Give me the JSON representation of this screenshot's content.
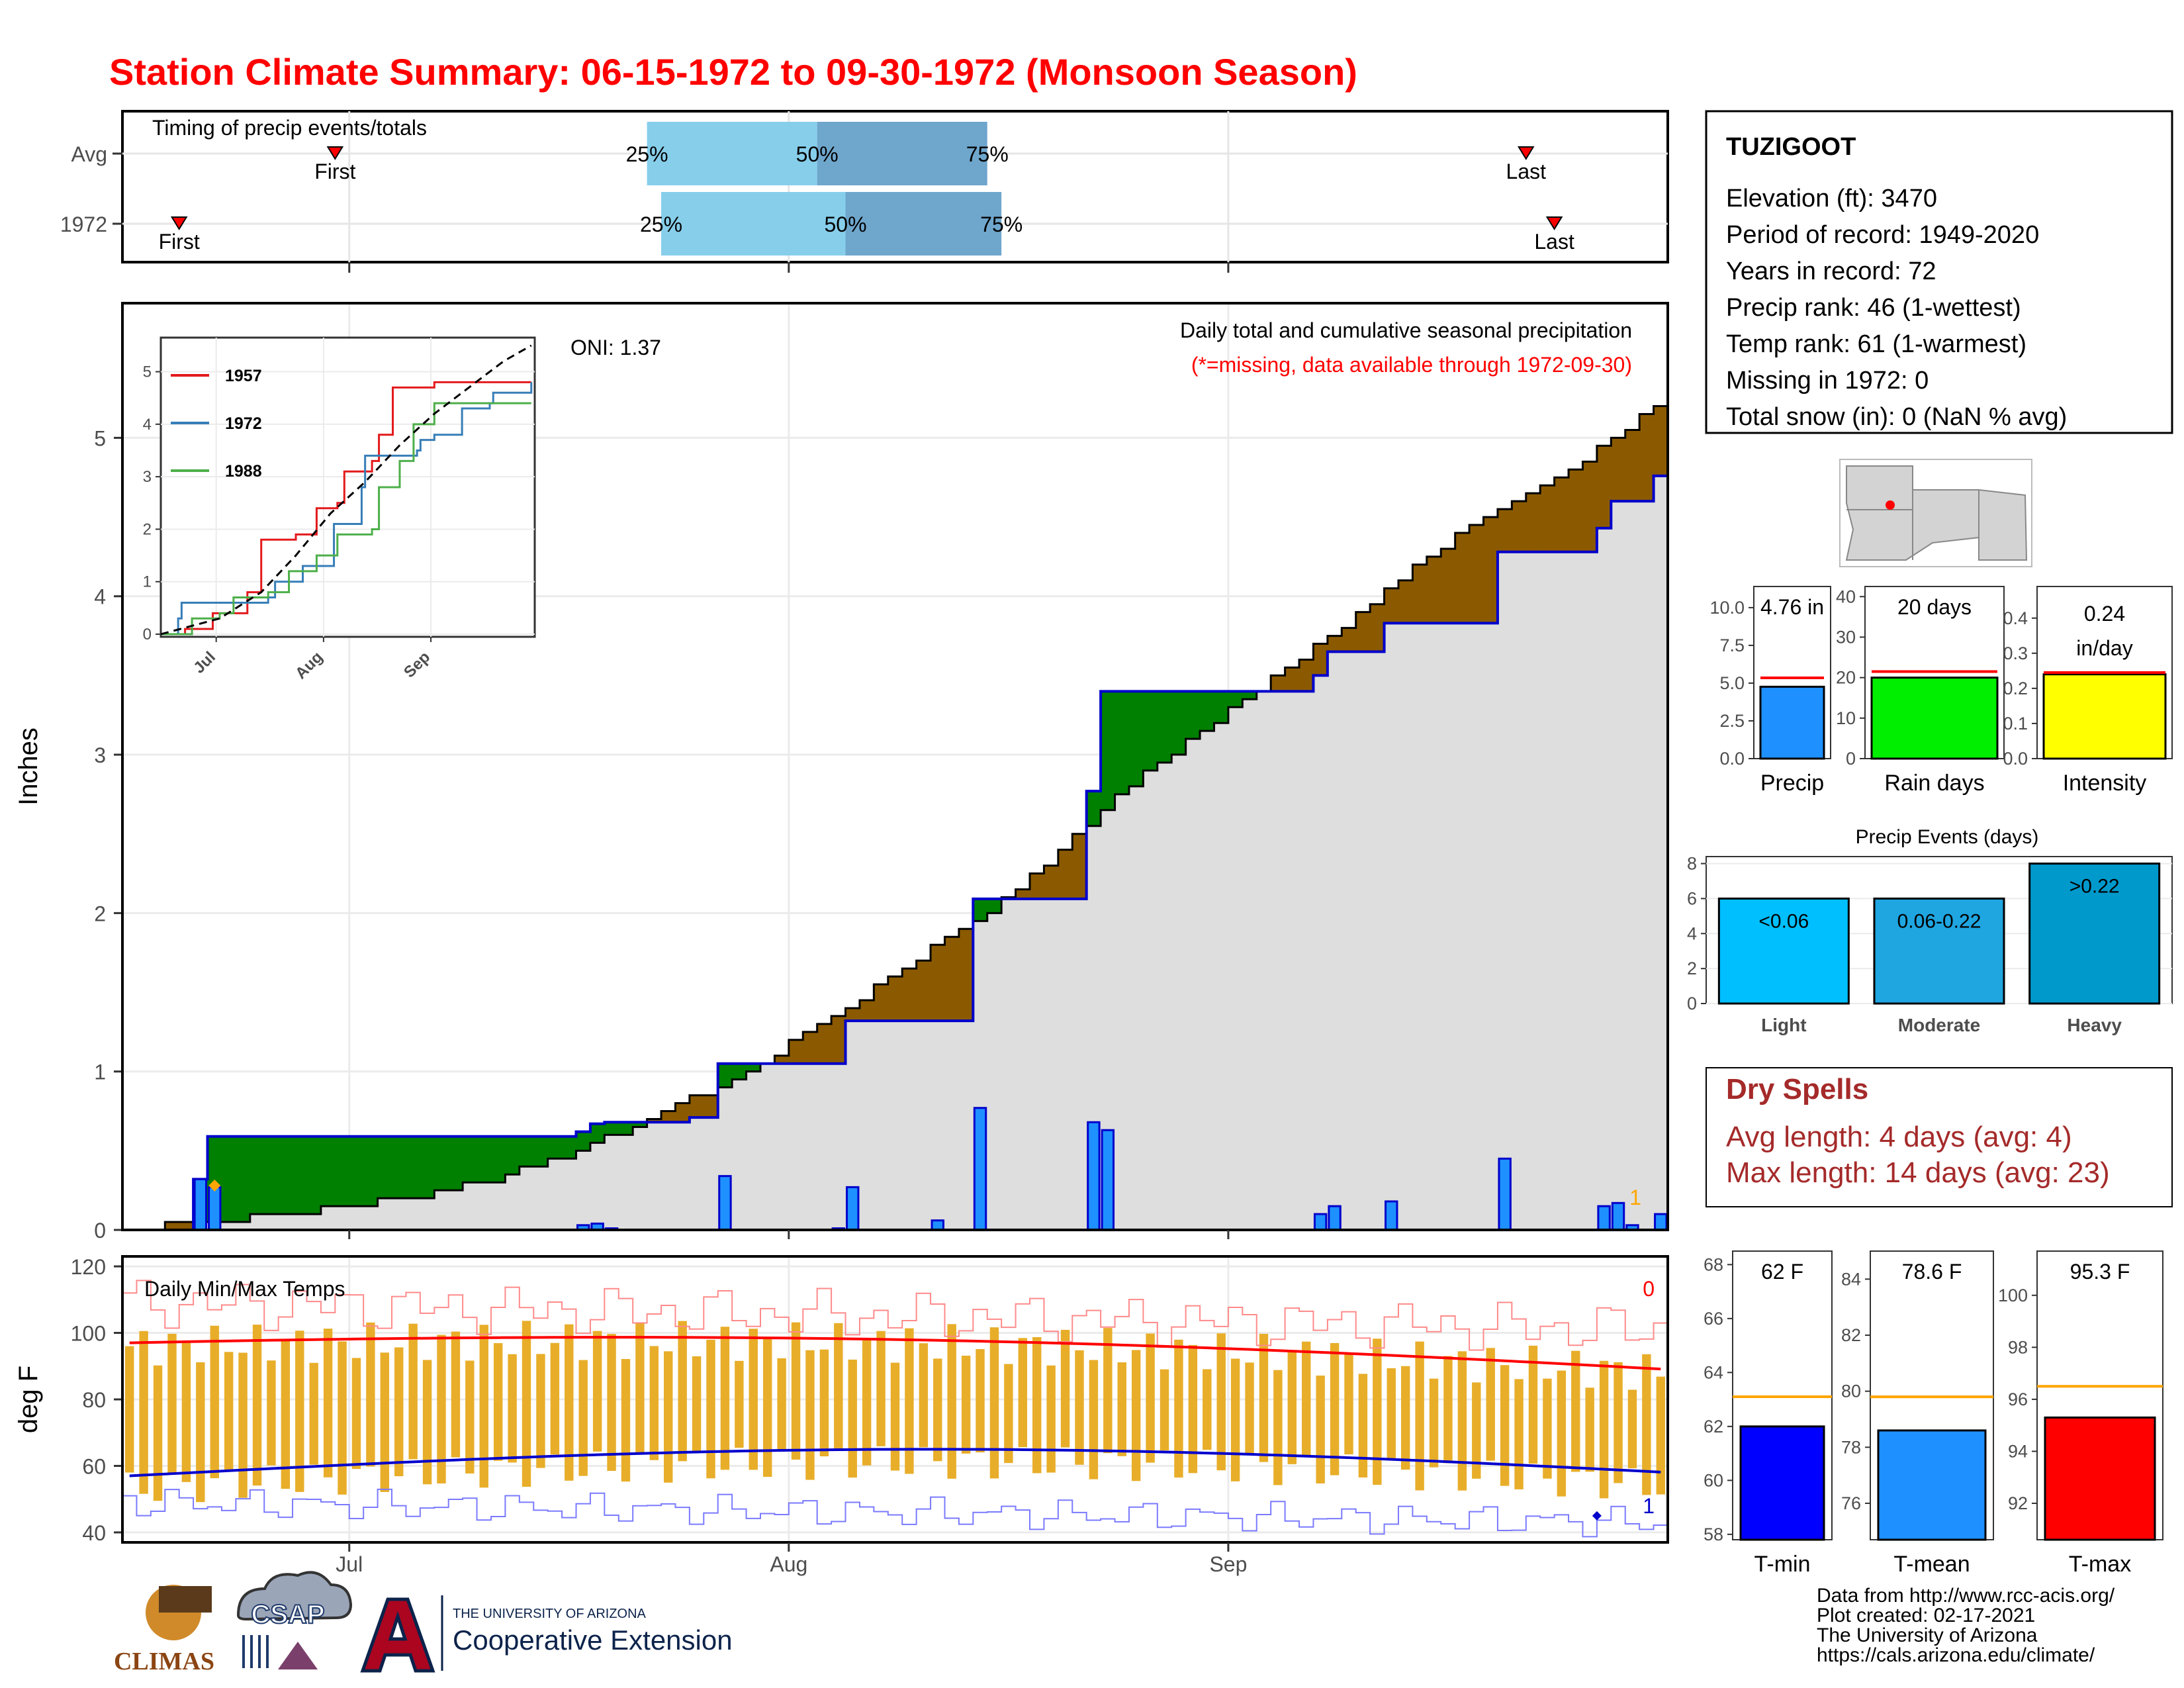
{
  "title": "Station Climate Summary: 06-15-1972 to 09-30-1972 (Monsoon Season)",
  "colors": {
    "title": "#ff0000",
    "precip_bar": "#1e90ff",
    "surplus": "#008000",
    "deficit": "#8b5a00",
    "cum_area": "#dedede",
    "avg_line": "#000000",
    "year_line": "#0000cc",
    "q_light": "#87ceeb",
    "q_dark": "#6fa6cc",
    "tmax_line": "#ff0000",
    "tmin_line": "#0000cc",
    "temp_bar": "#e8ae2a",
    "dry_spells": "#a52a2a"
  },
  "timing_panel": {
    "title": "Timing of precip events/totals",
    "rows": [
      {
        "label": "Avg",
        "first_label": "First",
        "last_label": "Last",
        "q25": "25%",
        "q50": "50%",
        "q75": "75%",
        "first_date": "2000-06-30",
        "q25_date": "2000-07-22",
        "q50_date": "2000-08-03",
        "q75_date": "2000-08-15",
        "last_date": "2000-09-22"
      },
      {
        "label": "1972",
        "first_label": "First",
        "last_label": "Last",
        "q25": "25%",
        "q50": "50%",
        "q75": "75%",
        "first_date": "2000-06-19",
        "q25_date": "2000-07-23",
        "q50_date": "2000-08-05",
        "q75_date": "2000-08-16",
        "last_date": "2000-09-24"
      }
    ]
  },
  "precip_panel": {
    "ylabel": "Inches",
    "yticks": [
      "0",
      "1",
      "2",
      "3",
      "4",
      "5"
    ],
    "oni": "ONI: 1.37",
    "caption": "Daily total and cumulative seasonal precipitation",
    "caption2": "(*=missing, data available through 1972-09-30)",
    "missing_count": "1"
  },
  "inset": {
    "yticks": [
      "0",
      "1",
      "2",
      "3",
      "4",
      "5"
    ],
    "xticks": [
      "Jul",
      "Aug",
      "Sep"
    ],
    "legend": [
      {
        "name": "1957",
        "color": "#e31a1c"
      },
      {
        "name": "1972",
        "color": "#377eb8"
      },
      {
        "name": "1988",
        "color": "#4daf4a"
      }
    ]
  },
  "temp_panel": {
    "title": "Daily Min/Max Temps",
    "ylabel": "deg F",
    "yticks": [
      "40",
      "60",
      "80",
      "100",
      "120"
    ],
    "count_top": "0",
    "count_bottom": "1"
  },
  "x_axis": {
    "ticks": [
      "Jul",
      "Aug",
      "Sep"
    ]
  },
  "station": {
    "name": "TUZIGOOT",
    "lines": [
      "Elevation (ft): 3470",
      "Period of record: 1949-2020",
      "Years in record: 72",
      "Precip rank: 46 (1-wettest)",
      "Temp rank: 61 (1-warmest)",
      "Missing in 1972: 0",
      "Total snow (in): 0 (NaN % avg)"
    ]
  },
  "summary_bars": [
    {
      "label": "Precip",
      "value_text": "4.76 in",
      "value": 4.76,
      "avg": 5.35,
      "ymax": 11.4,
      "ticks": [
        "0.0",
        "2.5",
        "5.0",
        "7.5",
        "10.0"
      ],
      "tick_values": [
        0,
        2.5,
        5,
        7.5,
        10
      ],
      "color": "#1e90ff"
    },
    {
      "label": "Rain days",
      "value_text": "20 days",
      "value": 20,
      "avg": 21.5,
      "ymax": 42.5,
      "ticks": [
        "0",
        "10",
        "20",
        "30",
        "40"
      ],
      "tick_values": [
        0,
        10,
        20,
        30,
        40
      ],
      "color": "#00ee00"
    },
    {
      "label": "Intensity",
      "value_text": "0.24",
      "value_text2": "in/day",
      "value": 0.24,
      "avg": 0.245,
      "ymax": 0.49,
      "ticks": [
        "0.0",
        "0.1",
        "0.2",
        "0.3",
        "0.4"
      ],
      "tick_values": [
        0,
        0.1,
        0.2,
        0.3,
        0.4
      ],
      "color": "#ffff00"
    }
  ],
  "events_chart": {
    "title": "Precip Events (days)",
    "categories": [
      "Light",
      "Moderate",
      "Heavy"
    ],
    "bin_labels": [
      "<0.06",
      "0.06-0.22",
      ">0.22"
    ],
    "values": [
      6,
      6,
      8
    ],
    "colors": [
      "#00bfff",
      "#1fa5e0",
      "#0099cc"
    ],
    "ticks": [
      "0",
      "2",
      "4",
      "6",
      "8"
    ]
  },
  "dry_spells": {
    "title": "Dry Spells",
    "lines": [
      "Avg length: 4 days (avg: 4)",
      "Max length: 14 days (avg: 23)"
    ]
  },
  "temp_bars": [
    {
      "label": "T-min",
      "value_text": "62 F",
      "value": 62,
      "avg": 63.1,
      "ymin": 57.8,
      "ymax": 68.5,
      "ticks": [
        "58",
        "60",
        "62",
        "64",
        "66",
        "68"
      ],
      "tick_values": [
        58,
        60,
        62,
        64,
        66,
        68
      ],
      "color": "#0000ff"
    },
    {
      "label": "T-mean",
      "value_text": "78.6 F",
      "value": 78.6,
      "avg": 79.8,
      "ymin": 74.7,
      "ymax": 85,
      "ticks": [
        "76",
        "78",
        "80",
        "82",
        "84"
      ],
      "tick_values": [
        76,
        78,
        80,
        82,
        84
      ],
      "color": "#1e90ff"
    },
    {
      "label": "T-max",
      "value_text": "95.3 F",
      "value": 95.3,
      "avg": 96.5,
      "ymin": 90.6,
      "ymax": 101.7,
      "ticks": [
        "92",
        "94",
        "96",
        "98",
        "100"
      ],
      "tick_values": [
        92,
        94,
        96,
        98,
        100
      ],
      "color": "#ff0000"
    }
  ],
  "footer": {
    "lines": [
      "Data from http://www.rcc-acis.org/",
      "Plot created: 02-17-2021",
      "The University of Arizona",
      "https://cals.arizona.edu/climate/"
    ],
    "logos": [
      "CLIMAS",
      "CSAP",
      "THE UNIVERSITY OF ARIZONA",
      "Cooperative Extension"
    ]
  },
  "chart_data": {
    "type": "bar",
    "title": "Daily total and cumulative seasonal precipitation",
    "ylabel": "Inches",
    "xlim": [
      "1972-06-15",
      "1972-09-30"
    ],
    "ylim": [
      0,
      5.85
    ],
    "daily_precip": [
      {
        "date": "1972-06-20",
        "value": 0.32
      },
      {
        "date": "1972-06-21",
        "value": 0.27
      },
      {
        "date": "1972-07-17",
        "value": 0.03
      },
      {
        "date": "1972-07-18",
        "value": 0.04
      },
      {
        "date": "1972-07-19",
        "value": 0.01
      },
      {
        "date": "1972-07-27",
        "value": 0.34
      },
      {
        "date": "1972-08-04",
        "value": 0.01
      },
      {
        "date": "1972-08-05",
        "value": 0.27
      },
      {
        "date": "1972-08-11",
        "value": 0.06
      },
      {
        "date": "1972-08-14",
        "value": 0.77
      },
      {
        "date": "1972-08-22",
        "value": 0.68
      },
      {
        "date": "1972-08-23",
        "value": 0.63
      },
      {
        "date": "1972-09-07",
        "value": 0.1
      },
      {
        "date": "1972-09-08",
        "value": 0.15
      },
      {
        "date": "1972-09-12",
        "value": 0.18
      },
      {
        "date": "1972-09-20",
        "value": 0.45
      },
      {
        "date": "1972-09-27",
        "value": 0.15
      },
      {
        "date": "1972-09-28",
        "value": 0.17
      },
      {
        "date": "1972-09-29",
        "value": 0.03
      },
      {
        "date": "1972-10-01",
        "value": 0.1
      }
    ],
    "cumulative_1972": [
      [
        "1972-06-15",
        0.0
      ],
      [
        "1972-06-20",
        0.32
      ],
      [
        "1972-06-21",
        0.59
      ],
      [
        "1972-07-17",
        0.62
      ],
      [
        "1972-07-18",
        0.67
      ],
      [
        "1972-07-19",
        0.68
      ],
      [
        "1972-07-25",
        0.71
      ],
      [
        "1972-07-27",
        1.05
      ],
      [
        "1972-08-05",
        1.32
      ],
      [
        "1972-08-14",
        2.09
      ],
      [
        "1972-08-22",
        2.77
      ],
      [
        "1972-08-23",
        3.4
      ],
      [
        "1972-09-07",
        3.5
      ],
      [
        "1972-09-08",
        3.65
      ],
      [
        "1972-09-12",
        3.83
      ],
      [
        "1972-09-20",
        4.28
      ],
      [
        "1972-09-27",
        4.43
      ],
      [
        "1972-09-28",
        4.6
      ],
      [
        "1972-10-01",
        4.76
      ]
    ],
    "cumulative_avg": [
      [
        "1972-06-15",
        0.0
      ],
      [
        "1972-06-20",
        0.05
      ],
      [
        "1972-06-25",
        0.09
      ],
      [
        "1972-07-01",
        0.15
      ],
      [
        "1972-07-06",
        0.22
      ],
      [
        "1972-07-11",
        0.32
      ],
      [
        "1972-07-16",
        0.47
      ],
      [
        "1972-07-21",
        0.66
      ],
      [
        "1972-07-26",
        0.87
      ],
      [
        "1972-07-31",
        1.12
      ],
      [
        "1972-08-05",
        1.41
      ],
      [
        "1972-08-10",
        1.72
      ],
      [
        "1972-08-15",
        2.02
      ],
      [
        "1972-08-20",
        2.4
      ],
      [
        "1972-08-25",
        2.82
      ],
      [
        "1972-08-30",
        3.16
      ],
      [
        "1972-09-04",
        3.48
      ],
      [
        "1972-09-09",
        3.82
      ],
      [
        "1972-09-14",
        4.18
      ],
      [
        "1972-09-19",
        4.52
      ],
      [
        "1972-09-24",
        4.75
      ],
      [
        "1972-09-29",
        5.05
      ],
      [
        "1972-10-02",
        5.3
      ]
    ],
    "inset_series": [
      {
        "name": "1957",
        "points": [
          [
            1,
            0.0
          ],
          [
            8,
            0.1
          ],
          [
            16,
            0.4
          ],
          [
            26,
            0.8
          ],
          [
            30,
            1.8
          ],
          [
            40,
            1.9
          ],
          [
            46,
            2.4
          ],
          [
            52,
            2.5
          ],
          [
            54,
            3.1
          ],
          [
            62,
            3.3
          ],
          [
            64,
            3.8
          ],
          [
            68,
            4.7
          ],
          [
            80,
            4.8
          ],
          [
            108,
            4.8
          ]
        ]
      },
      {
        "name": "1972",
        "points": [
          [
            1,
            0.0
          ],
          [
            6,
            0.3
          ],
          [
            7,
            0.6
          ],
          [
            32,
            0.7
          ],
          [
            34,
            1.0
          ],
          [
            42,
            1.3
          ],
          [
            51,
            2.1
          ],
          [
            59,
            2.8
          ],
          [
            60,
            3.4
          ],
          [
            75,
            3.5
          ],
          [
            76,
            3.7
          ],
          [
            80,
            3.8
          ],
          [
            88,
            4.3
          ],
          [
            96,
            4.4
          ],
          [
            97,
            4.6
          ],
          [
            108,
            4.8
          ]
        ]
      },
      {
        "name": "1988",
        "points": [
          [
            1,
            0.0
          ],
          [
            10,
            0.3
          ],
          [
            18,
            0.4
          ],
          [
            22,
            0.7
          ],
          [
            32,
            0.8
          ],
          [
            38,
            1.2
          ],
          [
            46,
            1.5
          ],
          [
            52,
            1.9
          ],
          [
            62,
            2.0
          ],
          [
            64,
            2.8
          ],
          [
            70,
            3.3
          ],
          [
            74,
            4.0
          ],
          [
            80,
            4.4
          ],
          [
            108,
            4.4
          ]
        ]
      },
      {
        "name": "avg",
        "points": [
          [
            1,
            0.0
          ],
          [
            18,
            0.3
          ],
          [
            30,
            0.8
          ],
          [
            40,
            1.5
          ],
          [
            50,
            2.3
          ],
          [
            60,
            2.9
          ],
          [
            70,
            3.6
          ],
          [
            80,
            4.2
          ],
          [
            90,
            4.7
          ],
          [
            100,
            5.2
          ],
          [
            108,
            5.5
          ]
        ]
      }
    ]
  }
}
